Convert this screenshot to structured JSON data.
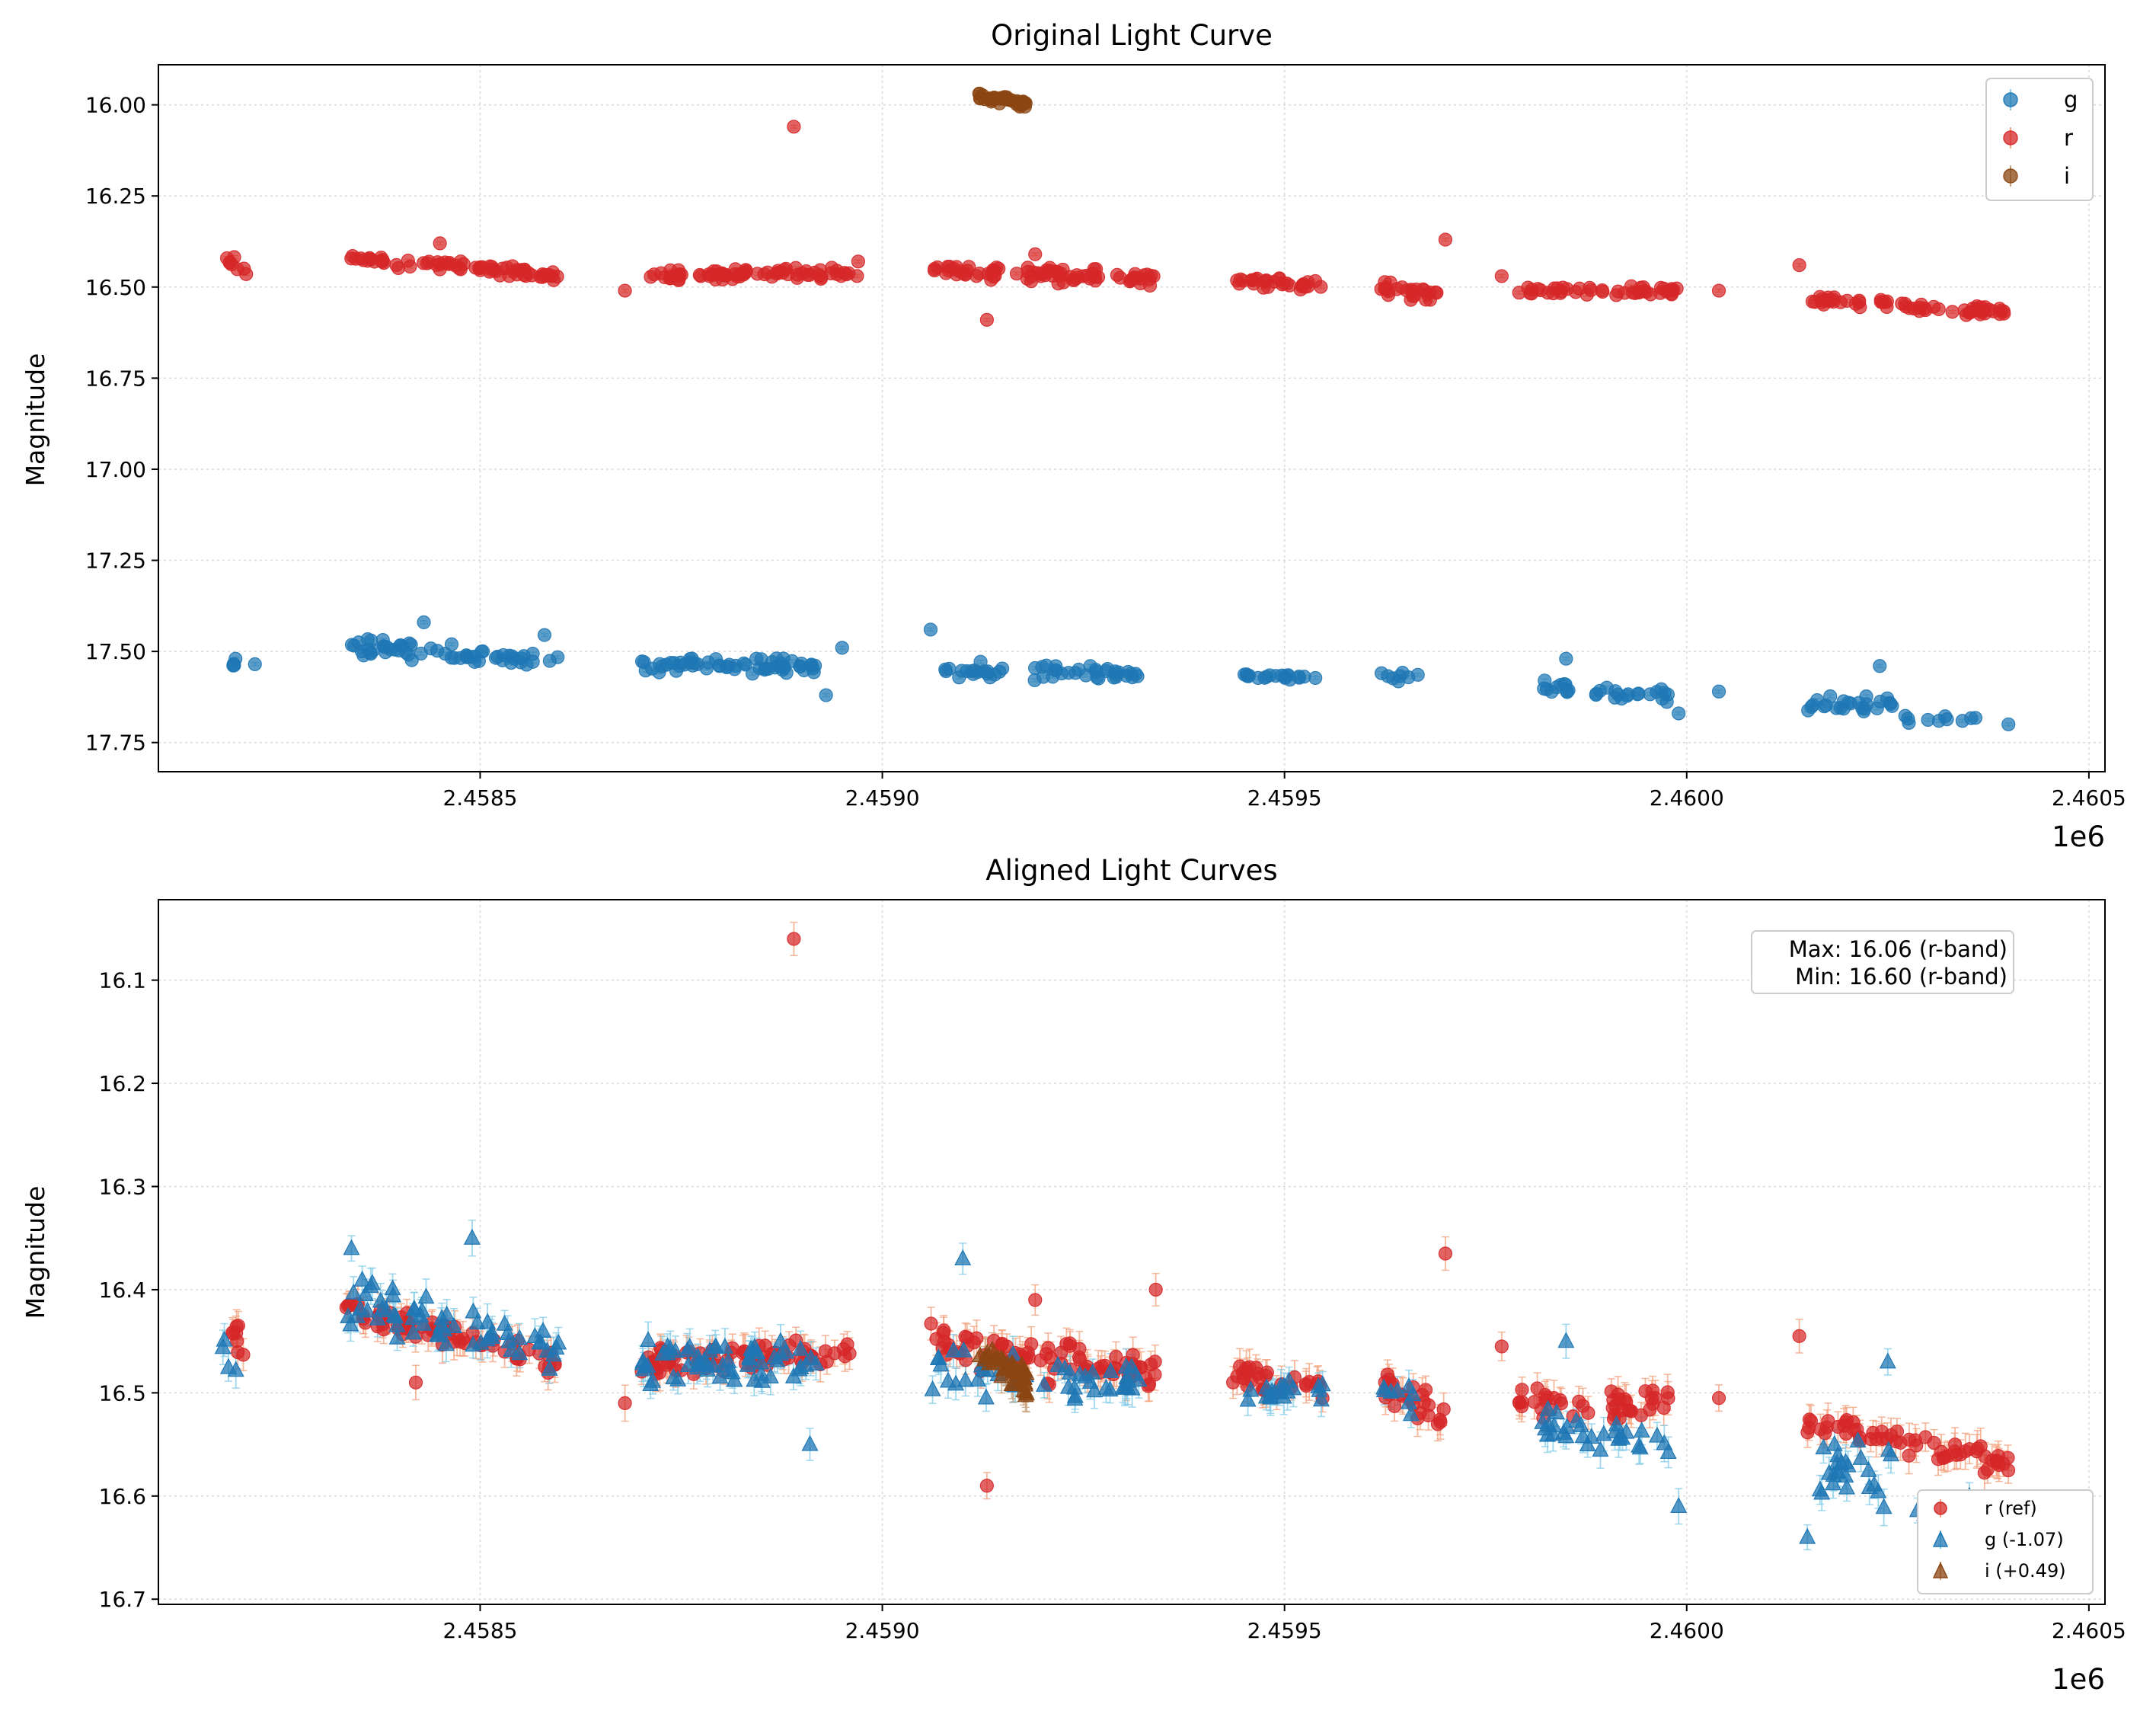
{
  "chart_data": [
    {
      "type": "scatter",
      "title": "Original Light Curve",
      "xlabel": "",
      "ylabel": "Magnitude",
      "x_offset_label": "1e6",
      "xlim": [
        2.4581,
        2.46052
      ],
      "ylim": [
        15.89,
        17.83
      ],
      "y_inverted": true,
      "grid": true,
      "legend_position": "top-right",
      "x_ticks": [
        {
          "value": 2.4585,
          "label": "2.4585"
        },
        {
          "value": 2.459,
          "label": "2.4590"
        },
        {
          "value": 2.4595,
          "label": "2.4595"
        },
        {
          "value": 2.46,
          "label": "2.4600"
        },
        {
          "value": 2.4605,
          "label": "2.4605"
        }
      ],
      "y_ticks": [
        {
          "value": 16.0,
          "label": "16.00"
        },
        {
          "value": 16.25,
          "label": "16.25"
        },
        {
          "value": 16.5,
          "label": "16.50"
        },
        {
          "value": 16.75,
          "label": "16.75"
        },
        {
          "value": 17.0,
          "label": "17.00"
        },
        {
          "value": 17.25,
          "label": "17.25"
        },
        {
          "value": 17.5,
          "label": "17.50"
        },
        {
          "value": 17.75,
          "label": "17.75"
        }
      ],
      "series": [
        {
          "name": "g",
          "marker": "circle",
          "color": "#1f77b4",
          "err_color": "#87cde8",
          "segments": [
            {
              "x0": 2.45818,
              "x1": 2.4582,
              "y0": 17.53,
              "y1": 17.53,
              "spread": 0.03,
              "n": 4
            },
            {
              "x0": 2.45833,
              "x1": 2.45845,
              "y0": 17.48,
              "y1": 17.5,
              "spread": 0.04,
              "n": 30
            },
            {
              "x0": 2.45845,
              "x1": 2.4586,
              "y0": 17.5,
              "y1": 17.53,
              "spread": 0.03,
              "n": 30
            },
            {
              "x0": 2.4587,
              "x1": 2.45892,
              "y0": 17.54,
              "y1": 17.54,
              "spread": 0.03,
              "n": 60
            },
            {
              "x0": 2.45906,
              "x1": 2.45932,
              "y0": 17.55,
              "y1": 17.56,
              "spread": 0.03,
              "n": 50
            },
            {
              "x0": 2.45945,
              "x1": 2.45955,
              "y0": 17.57,
              "y1": 17.57,
              "spread": 0.02,
              "n": 20
            },
            {
              "x0": 2.45962,
              "x1": 2.45967,
              "y0": 17.57,
              "y1": 17.58,
              "spread": 0.02,
              "n": 8
            },
            {
              "x0": 2.45982,
              "x1": 2.45998,
              "y0": 17.6,
              "y1": 17.62,
              "spread": 0.03,
              "n": 30
            },
            {
              "x0": 2.46015,
              "x1": 2.46026,
              "y0": 17.64,
              "y1": 17.65,
              "spread": 0.04,
              "n": 25
            },
            {
              "x0": 2.46026,
              "x1": 2.4604,
              "y0": 17.69,
              "y1": 17.68,
              "spread": 0.02,
              "n": 10
            }
          ],
          "points": [
            {
              "x": 2.45822,
              "y": 17.535
            },
            {
              "x": 2.45843,
              "y": 17.42
            },
            {
              "x": 2.45858,
              "y": 17.455
            },
            {
              "x": 2.45906,
              "y": 17.44
            },
            {
              "x": 2.45893,
              "y": 17.62
            },
            {
              "x": 2.45895,
              "y": 17.49
            },
            {
              "x": 2.45985,
              "y": 17.52
            },
            {
              "x": 2.45999,
              "y": 17.67
            },
            {
              "x": 2.46004,
              "y": 17.61
            },
            {
              "x": 2.46024,
              "y": 17.54
            },
            {
              "x": 2.4604,
              "y": 17.7
            }
          ]
        },
        {
          "name": "r",
          "marker": "circle",
          "color": "#d62728",
          "err_color": "#f4a582",
          "segments": [
            {
              "x0": 2.45818,
              "x1": 2.45821,
              "y0": 16.42,
              "y1": 16.45,
              "spread": 0.03,
              "n": 8
            },
            {
              "x0": 2.45833,
              "x1": 2.4586,
              "y0": 16.42,
              "y1": 16.47,
              "spread": 0.02,
              "n": 70
            },
            {
              "x0": 2.4587,
              "x1": 2.45897,
              "y0": 16.47,
              "y1": 16.46,
              "spread": 0.02,
              "n": 70
            },
            {
              "x0": 2.45906,
              "x1": 2.45934,
              "y0": 16.45,
              "y1": 16.48,
              "spread": 0.03,
              "n": 80
            },
            {
              "x0": 2.45943,
              "x1": 2.45955,
              "y0": 16.48,
              "y1": 16.5,
              "spread": 0.02,
              "n": 30
            },
            {
              "x0": 2.45962,
              "x1": 2.4597,
              "y0": 16.5,
              "y1": 16.52,
              "spread": 0.03,
              "n": 25
            },
            {
              "x0": 2.45979,
              "x1": 2.45999,
              "y0": 16.51,
              "y1": 16.51,
              "spread": 0.02,
              "n": 45
            },
            {
              "x0": 2.46015,
              "x1": 2.4604,
              "y0": 16.53,
              "y1": 16.57,
              "spread": 0.02,
              "n": 60
            }
          ],
          "points": [
            {
              "x": 2.45889,
              "y": 16.06
            },
            {
              "x": 2.4597,
              "y": 16.37
            },
            {
              "x": 2.45913,
              "y": 16.59
            },
            {
              "x": 2.46014,
              "y": 16.44
            },
            {
              "x": 2.45919,
              "y": 16.41
            },
            {
              "x": 2.45868,
              "y": 16.51
            },
            {
              "x": 2.45977,
              "y": 16.47
            },
            {
              "x": 2.46004,
              "y": 16.51
            },
            {
              "x": 2.45883,
              "y": 16.46
            },
            {
              "x": 2.45897,
              "y": 16.43
            },
            {
              "x": 2.45845,
              "y": 16.38
            }
          ]
        },
        {
          "name": "i",
          "marker": "circle",
          "color": "#8b4513",
          "err_color": "#c9a27e",
          "segments": [
            {
              "x0": 2.45912,
              "x1": 2.45918,
              "y0": 15.97,
              "y1": 16.0,
              "spread": 0.02,
              "n": 40
            }
          ],
          "points": []
        }
      ]
    },
    {
      "type": "scatter",
      "title": "Aligned Light Curves",
      "xlabel": "",
      "ylabel": "Magnitude",
      "x_offset_label": "1e6",
      "xlim": [
        2.4581,
        2.46052
      ],
      "ylim": [
        16.022,
        16.705
      ],
      "y_inverted": true,
      "grid": true,
      "legend_position": "bottom-right",
      "annotation": [
        "Max: 16.06 (r-band)",
        "Min: 16.60 (r-band)"
      ],
      "x_ticks": [
        {
          "value": 2.4585,
          "label": "2.4585"
        },
        {
          "value": 2.459,
          "label": "2.4590"
        },
        {
          "value": 2.4595,
          "label": "2.4595"
        },
        {
          "value": 2.46,
          "label": "2.4600"
        },
        {
          "value": 2.4605,
          "label": "2.4605"
        }
      ],
      "y_ticks": [
        {
          "value": 16.1,
          "label": "16.1"
        },
        {
          "value": 16.2,
          "label": "16.2"
        },
        {
          "value": 16.3,
          "label": "16.3"
        },
        {
          "value": 16.4,
          "label": "16.4"
        },
        {
          "value": 16.5,
          "label": "16.5"
        },
        {
          "value": 16.6,
          "label": "16.6"
        },
        {
          "value": 16.7,
          "label": "16.7"
        }
      ],
      "series": [
        {
          "name": "r (ref)",
          "marker": "circle",
          "color": "#d62728",
          "err_color": "#f4a582",
          "segments": [
            {
              "x0": 2.45818,
              "x1": 2.45821,
              "y0": 16.42,
              "y1": 16.46,
              "spread": 0.03,
              "n": 8
            },
            {
              "x0": 2.45833,
              "x1": 2.4586,
              "y0": 16.42,
              "y1": 16.47,
              "spread": 0.02,
              "n": 70
            },
            {
              "x0": 2.4587,
              "x1": 2.45897,
              "y0": 16.47,
              "y1": 16.46,
              "spread": 0.02,
              "n": 70
            },
            {
              "x0": 2.45906,
              "x1": 2.45934,
              "y0": 16.45,
              "y1": 16.48,
              "spread": 0.03,
              "n": 80
            },
            {
              "x0": 2.45943,
              "x1": 2.45955,
              "y0": 16.48,
              "y1": 16.5,
              "spread": 0.02,
              "n": 30
            },
            {
              "x0": 2.45962,
              "x1": 2.4597,
              "y0": 16.5,
              "y1": 16.52,
              "spread": 0.03,
              "n": 25
            },
            {
              "x0": 2.45979,
              "x1": 2.45999,
              "y0": 16.51,
              "y1": 16.51,
              "spread": 0.02,
              "n": 45
            },
            {
              "x0": 2.46015,
              "x1": 2.4604,
              "y0": 16.53,
              "y1": 16.57,
              "spread": 0.02,
              "n": 60
            }
          ],
          "points": [
            {
              "x": 2.45889,
              "y": 16.06
            },
            {
              "x": 2.4597,
              "y": 16.365
            },
            {
              "x": 2.45913,
              "y": 16.59
            },
            {
              "x": 2.46014,
              "y": 16.445
            },
            {
              "x": 2.45919,
              "y": 16.41
            },
            {
              "x": 2.45868,
              "y": 16.51
            },
            {
              "x": 2.45977,
              "y": 16.455
            },
            {
              "x": 2.46004,
              "y": 16.505
            },
            {
              "x": 2.45934,
              "y": 16.4
            },
            {
              "x": 2.45842,
              "y": 16.49
            }
          ]
        },
        {
          "name": "g (-1.07)",
          "marker": "triangle",
          "color": "#1f77b4",
          "err_color": "#87cde8",
          "segments": [
            {
              "x0": 2.45818,
              "x1": 2.45821,
              "y0": 16.46,
              "y1": 16.47,
              "spread": 0.03,
              "n": 4
            },
            {
              "x0": 2.45833,
              "x1": 2.45845,
              "y0": 16.41,
              "y1": 16.43,
              "spread": 0.04,
              "n": 30
            },
            {
              "x0": 2.45845,
              "x1": 2.4586,
              "y0": 16.43,
              "y1": 16.46,
              "spread": 0.03,
              "n": 30
            },
            {
              "x0": 2.4587,
              "x1": 2.45892,
              "y0": 16.47,
              "y1": 16.47,
              "spread": 0.03,
              "n": 60
            },
            {
              "x0": 2.45906,
              "x1": 2.45932,
              "y0": 16.48,
              "y1": 16.49,
              "spread": 0.03,
              "n": 50
            },
            {
              "x0": 2.45945,
              "x1": 2.45955,
              "y0": 16.5,
              "y1": 16.5,
              "spread": 0.02,
              "n": 20
            },
            {
              "x0": 2.45962,
              "x1": 2.45967,
              "y0": 16.5,
              "y1": 16.51,
              "spread": 0.02,
              "n": 8
            },
            {
              "x0": 2.45982,
              "x1": 2.45998,
              "y0": 16.53,
              "y1": 16.55,
              "spread": 0.03,
              "n": 30
            },
            {
              "x0": 2.46015,
              "x1": 2.46026,
              "y0": 16.57,
              "y1": 16.58,
              "spread": 0.04,
              "n": 25
            },
            {
              "x0": 2.46026,
              "x1": 2.4604,
              "y0": 16.62,
              "y1": 16.61,
              "spread": 0.02,
              "n": 10
            }
          ],
          "points": [
            {
              "x": 2.45834,
              "y": 16.36
            },
            {
              "x": 2.45849,
              "y": 16.35
            },
            {
              "x": 2.4591,
              "y": 16.37
            },
            {
              "x": 2.45891,
              "y": 16.55
            },
            {
              "x": 2.45999,
              "y": 16.61
            },
            {
              "x": 2.46025,
              "y": 16.47
            },
            {
              "x": 2.46015,
              "y": 16.64
            },
            {
              "x": 2.45985,
              "y": 16.45
            }
          ]
        },
        {
          "name": "i (+0.49)",
          "marker": "triangle",
          "color": "#8b4513",
          "err_color": "#c9a27e",
          "segments": [
            {
              "x0": 2.45912,
              "x1": 2.45918,
              "y0": 16.46,
              "y1": 16.49,
              "spread": 0.02,
              "n": 40
            }
          ],
          "points": []
        }
      ]
    }
  ]
}
